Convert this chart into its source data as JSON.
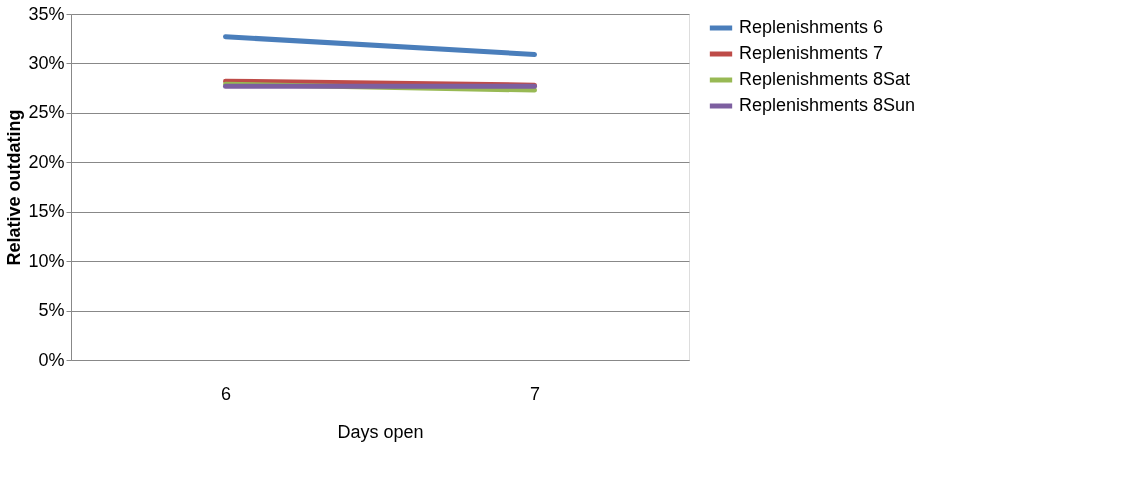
{
  "chart_data": {
    "type": "line",
    "xlabel": "Days open",
    "ylabel": "Relative outdating",
    "categories": [
      "6",
      "7"
    ],
    "series": [
      {
        "name": "Replenishments 6",
        "color": "#4a7ebb",
        "values": [
          32.7,
          30.9
        ]
      },
      {
        "name": "Replenishments 7",
        "color": "#be4b48",
        "values": [
          28.2,
          27.8
        ]
      },
      {
        "name": "Replenishments 8Sat",
        "color": "#98b954",
        "values": [
          27.9,
          27.3
        ]
      },
      {
        "name": "Replenishments 8Sun",
        "color": "#7d5fa0",
        "values": [
          27.7,
          27.7
        ]
      }
    ],
    "ylim": [
      0,
      35
    ],
    "yticks": [
      {
        "value": 0,
        "label": "0%"
      },
      {
        "value": 5,
        "label": "5%"
      },
      {
        "value": 10,
        "label": "10%"
      },
      {
        "value": 15,
        "label": "15%"
      },
      {
        "value": 20,
        "label": "20%"
      },
      {
        "value": 25,
        "label": "25%"
      },
      {
        "value": 30,
        "label": "30%"
      },
      {
        "value": 35,
        "label": "35%"
      }
    ],
    "grid": "y",
    "legend": "right",
    "marker": "none",
    "line_style": "solid"
  }
}
